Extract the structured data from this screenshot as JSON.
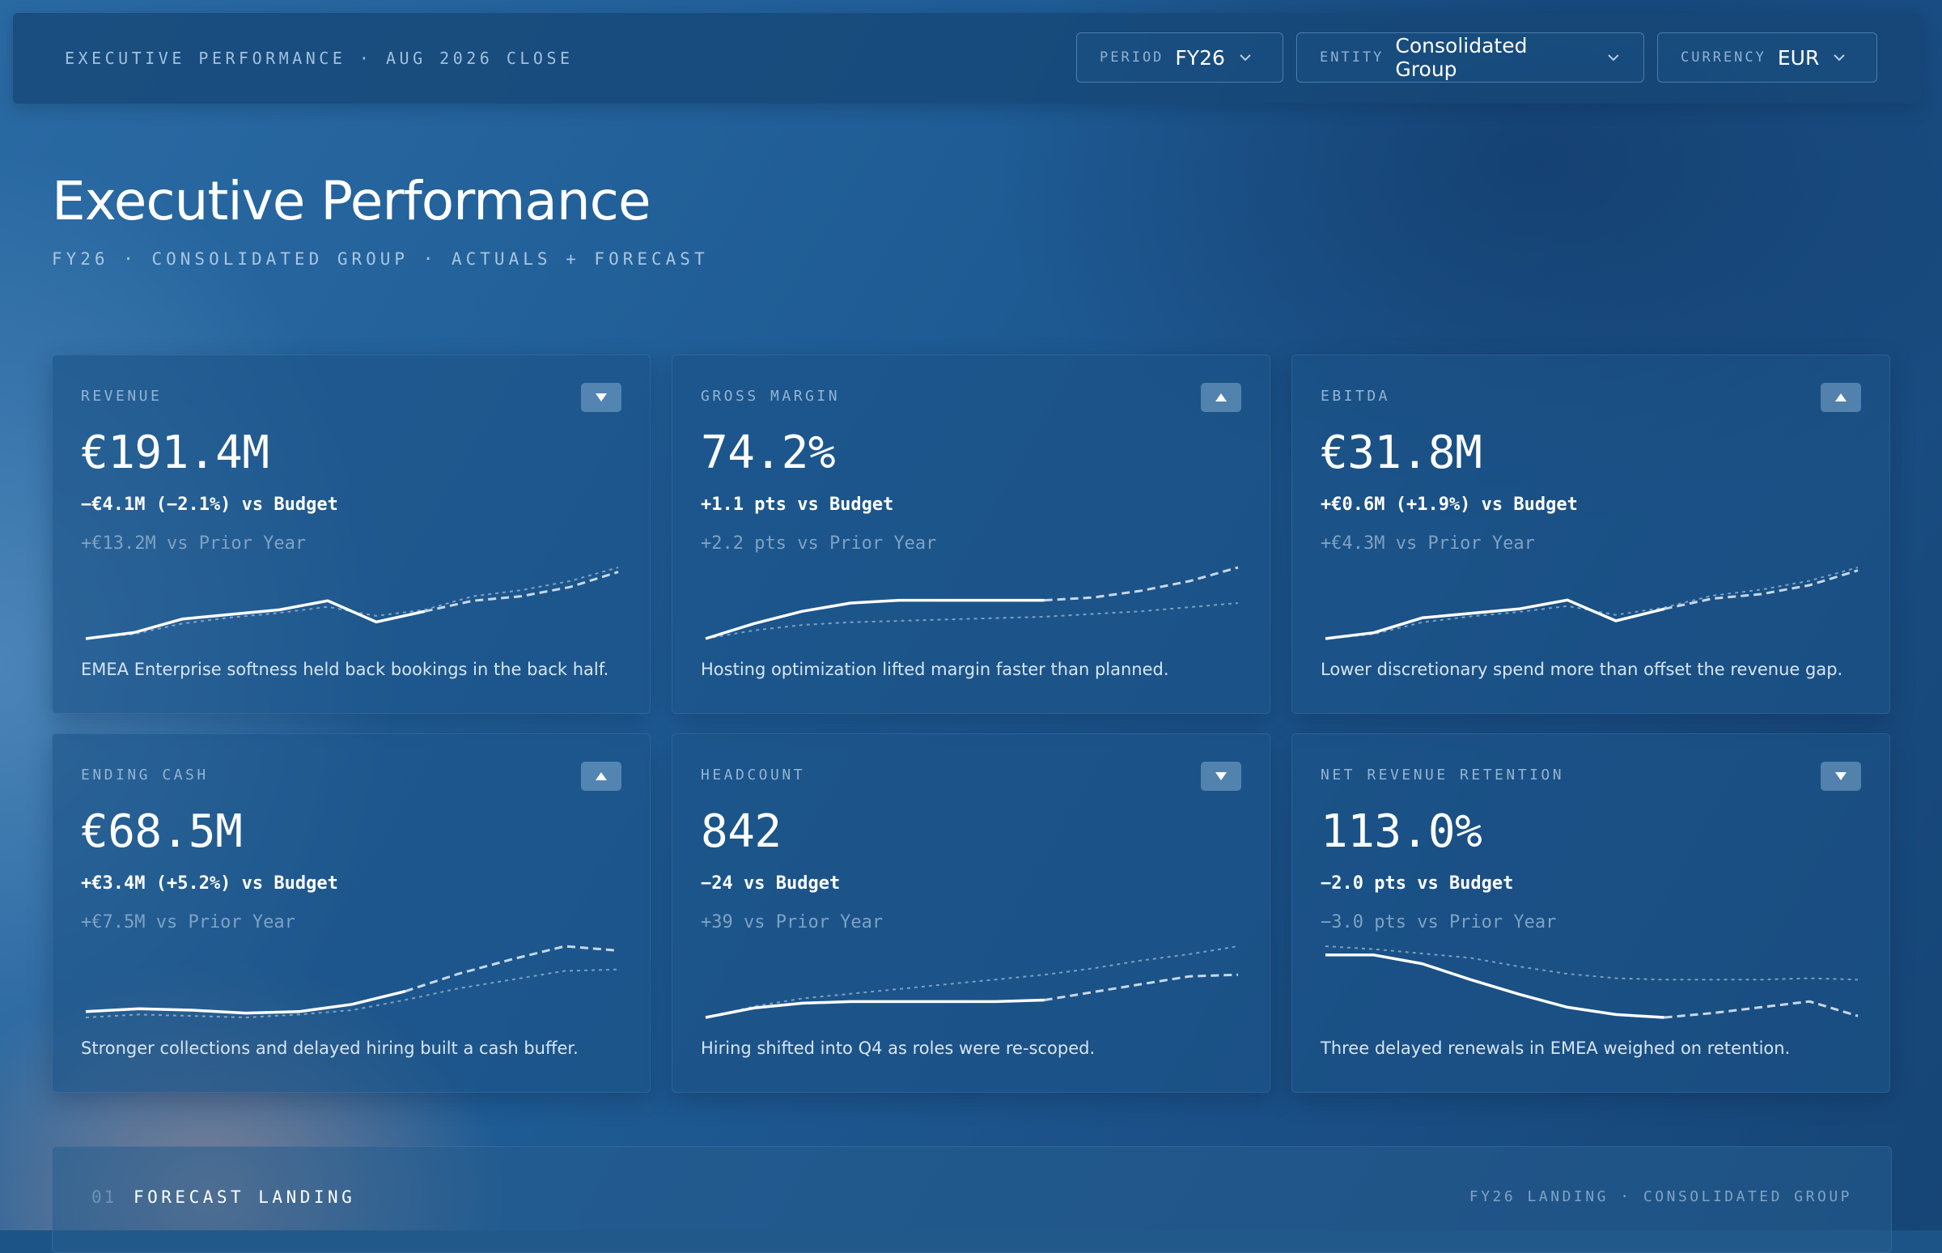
{
  "topbar": {
    "title": "EXECUTIVE PERFORMANCE · AUG 2026 CLOSE",
    "selectors": [
      {
        "label": "PERIOD",
        "value": "FY26"
      },
      {
        "label": "ENTITY",
        "value": "Consolidated Group"
      },
      {
        "label": "CURRENCY",
        "value": "EUR"
      }
    ]
  },
  "header": {
    "title": "Executive Performance",
    "subtitle": "FY26 · CONSOLIDATED GROUP · ACTUALS + FORECAST"
  },
  "colors": {
    "accent": "#ffffff",
    "muted": "#7ea2c4",
    "trend_bg": "#8fb6d9"
  },
  "cards": [
    {
      "label": "REVENUE",
      "trend": "down",
      "trend_icon": "triangle-down-icon",
      "value": "€191.4M",
      "budget": "−€4.1M (−2.1%) vs Budget",
      "prior": "+€13.2M vs Prior Year",
      "note": "EMEA Enterprise softness held back bookings in the back half.",
      "spark": {
        "actual": [
          10,
          14,
          23,
          26,
          29,
          35,
          21,
          28
        ],
        "forecast": [
          28,
          35,
          38,
          44,
          54
        ],
        "budget": [
          10,
          13,
          20,
          24,
          27,
          31,
          25,
          29,
          38,
          42,
          48,
          57
        ]
      }
    },
    {
      "label": "GROSS MARGIN",
      "trend": "up",
      "trend_icon": "triangle-up-icon",
      "value": "74.2%",
      "budget": "+1.1 pts vs Budget",
      "prior": "+2.2 pts vs Prior Year",
      "note": "Hosting optimization lifted margin faster than planned.",
      "spark": {
        "actual": [
          8,
          19,
          28,
          34,
          36,
          36,
          36,
          36
        ],
        "forecast": [
          36,
          38,
          43,
          50,
          60
        ],
        "budget": [
          8,
          14,
          18,
          20,
          21,
          22,
          23,
          24,
          26,
          28,
          31,
          34
        ]
      }
    },
    {
      "label": "EBITDA",
      "trend": "up",
      "trend_icon": "triangle-up-icon",
      "value": "€31.8M",
      "budget": "+€0.6M (+1.9%) vs Budget",
      "prior": "+€4.3M vs Prior Year",
      "note": "Lower discretionary spend more than offset the revenue gap.",
      "spark": {
        "actual": [
          10,
          14,
          24,
          27,
          30,
          36,
          22,
          30
        ],
        "forecast": [
          30,
          37,
          40,
          46,
          56
        ],
        "budget": [
          10,
          13,
          21,
          25,
          28,
          32,
          26,
          31,
          39,
          43,
          49,
          58
        ]
      }
    },
    {
      "label": "ENDING CASH",
      "trend": "up",
      "trend_icon": "triangle-up-icon",
      "value": "€68.5M",
      "budget": "+€3.4M (+5.2%) vs Budget",
      "prior": "+€7.5M vs Prior Year",
      "note": "Stronger collections and delayed hiring built a cash buffer.",
      "spark": {
        "actual": [
          20,
          22,
          21,
          19,
          20,
          25,
          34
        ],
        "forecast": [
          34,
          46,
          56,
          65,
          62
        ],
        "budget": [
          16,
          18,
          17,
          16,
          18,
          21,
          28,
          36,
          42,
          48,
          49
        ]
      }
    },
    {
      "label": "HEADCOUNT",
      "trend": "down",
      "trend_icon": "triangle-down-icon",
      "value": "842",
      "budget": "−24 vs Budget",
      "prior": "+39 vs Prior Year",
      "note": "Hiring shifted into Q4 as roles were re-scoped.",
      "spark": {
        "actual": [
          10,
          16,
          19,
          20,
          20,
          20,
          20,
          21
        ],
        "forecast": [
          21,
          26,
          31,
          36,
          37
        ],
        "budget": [
          10,
          17,
          22,
          25,
          28,
          31,
          34,
          37,
          41,
          46,
          50,
          55
        ]
      }
    },
    {
      "label": "NET REVENUE RETENTION",
      "trend": "down",
      "trend_icon": "triangle-down-icon",
      "value": "113.0%",
      "budget": "−2.0 pts vs Budget",
      "prior": "−3.0 pts vs Prior Year",
      "note": "Three delayed renewals in EMEA weighed on retention.",
      "spark": {
        "actual": [
          60,
          60,
          54,
          43,
          33,
          24,
          19,
          17
        ],
        "forecast": [
          17,
          20,
          24,
          28,
          18
        ],
        "budget": [
          66,
          64,
          61,
          58,
          52,
          47,
          44,
          43,
          43,
          43,
          44,
          43
        ]
      }
    }
  ],
  "bottom": {
    "number": "01",
    "title": "FORECAST LANDING",
    "right_text": "FY26 LANDING · CONSOLIDATED GROUP"
  }
}
